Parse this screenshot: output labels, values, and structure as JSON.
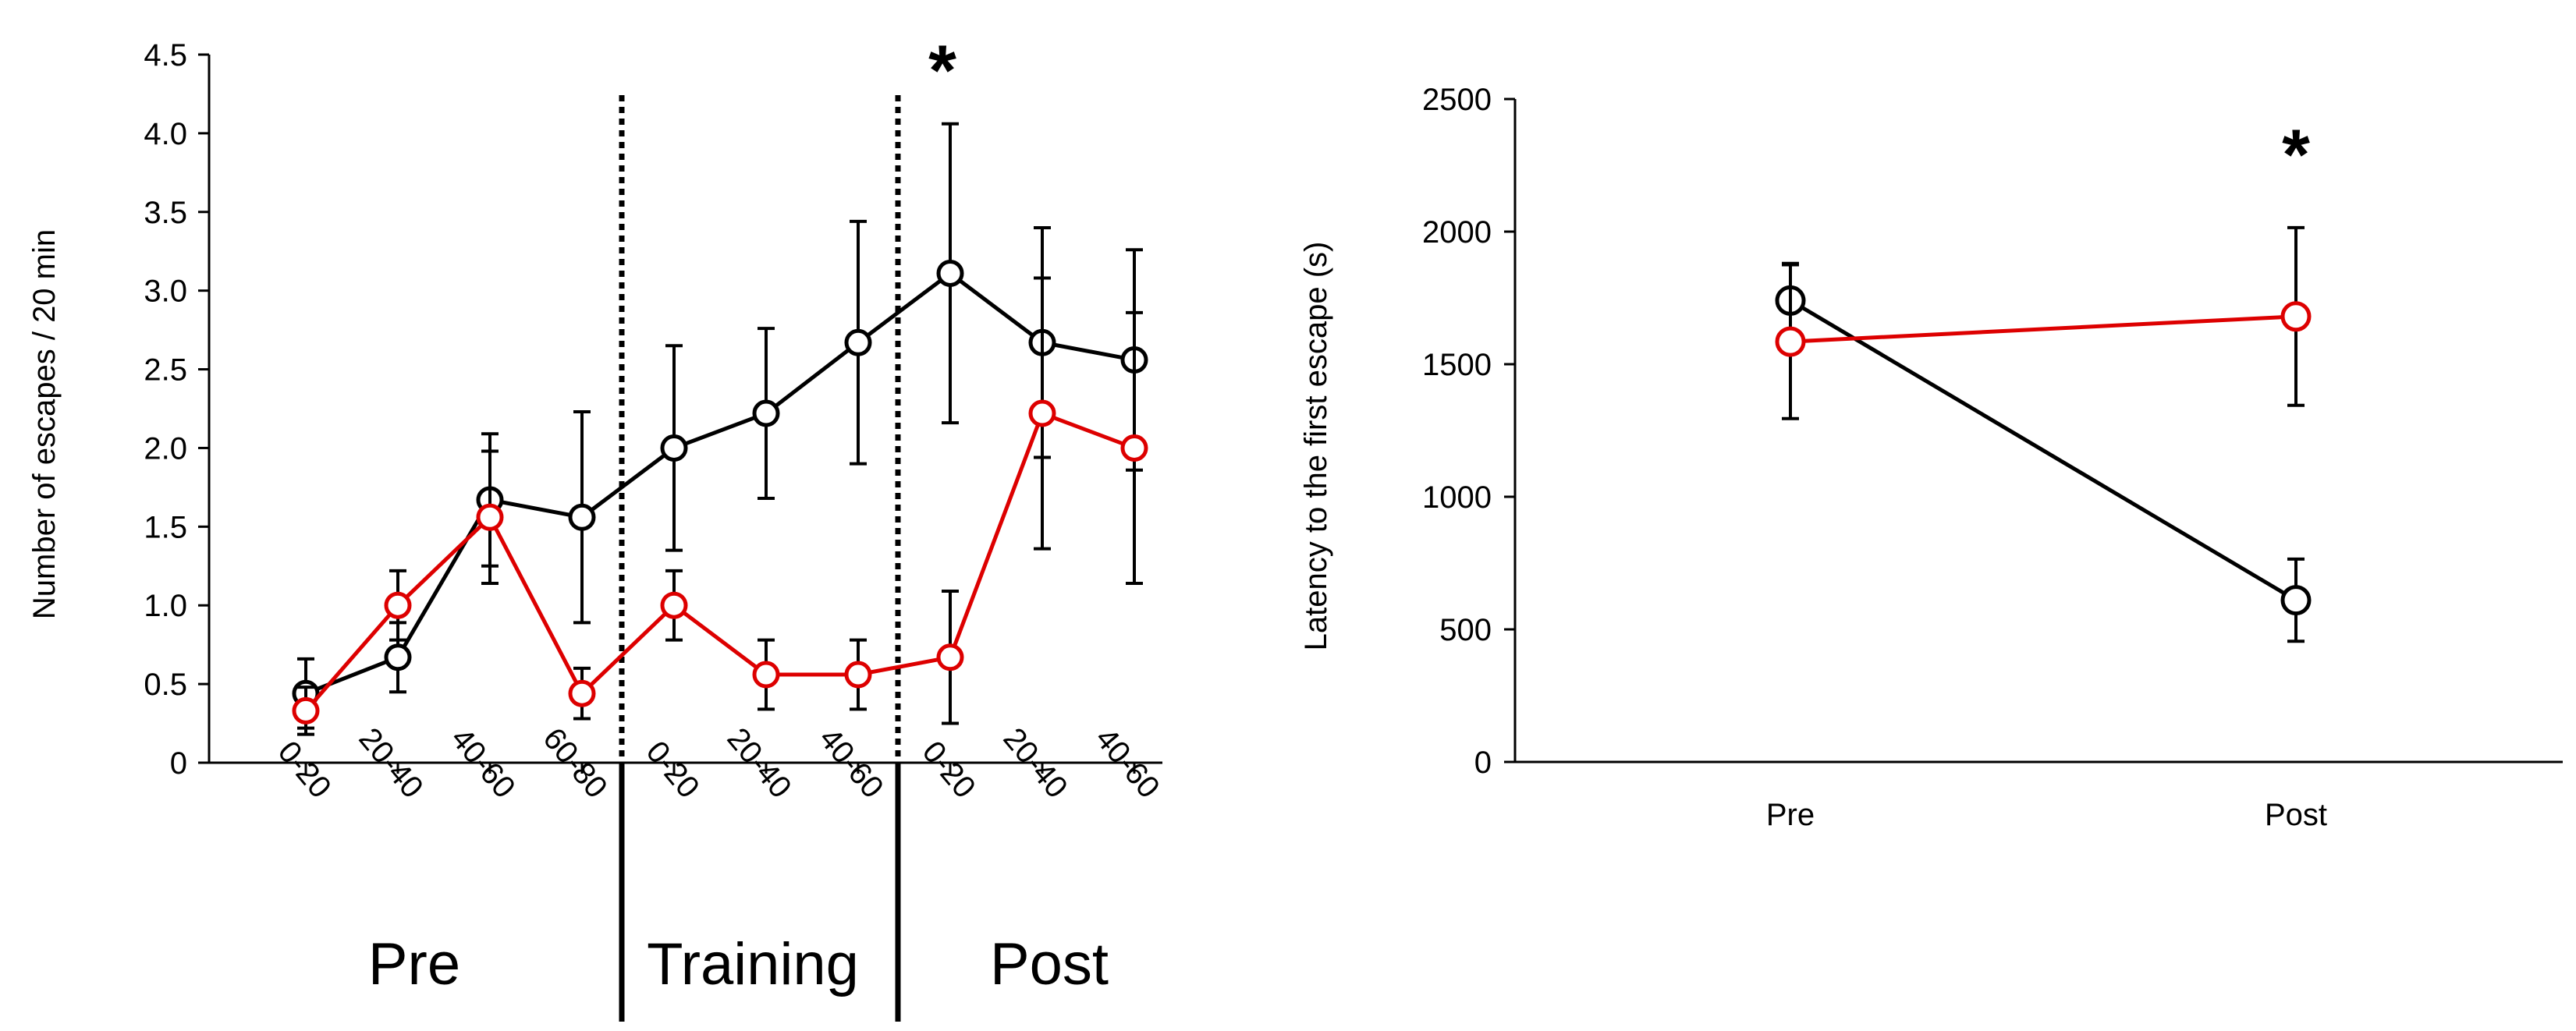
{
  "colors": {
    "control": "#000000",
    "treatment": "#dd0000"
  },
  "chart_data": [
    {
      "type": "line",
      "ylabel": "Number of escapes / 20 min",
      "xlabel": "",
      "ylim": [
        0,
        4.5
      ],
      "yticks": [
        "0",
        "0.5",
        "1.0",
        "1.5",
        "2.0",
        "2.5",
        "3.0",
        "3.5",
        "4.0",
        "4.5"
      ],
      "categories": [
        "0-20",
        "20-40",
        "40-60",
        "60-80",
        "0-20",
        "20-40",
        "40-60",
        "0-20",
        "20-40",
        "40-60"
      ],
      "phases": [
        "Pre",
        "Training",
        "Post"
      ],
      "significance": "*",
      "series": [
        {
          "name": "black",
          "color": "#000000",
          "values": [
            0.44,
            0.67,
            1.67,
            1.56,
            2.0,
            2.22,
            2.67,
            3.11,
            2.67,
            2.56
          ],
          "errors": [
            0.22,
            0.22,
            0.42,
            0.67,
            0.65,
            0.54,
            0.77,
            0.95,
            0.73,
            0.7
          ]
        },
        {
          "name": "red",
          "color": "#dd0000",
          "values": [
            0.33,
            1.0,
            1.56,
            0.44,
            1.0,
            0.56,
            0.56,
            0.67,
            2.22,
            2.0
          ],
          "errors": [
            0.15,
            0.22,
            0.42,
            0.16,
            0.22,
            0.22,
            0.22,
            0.42,
            0.86,
            0.86
          ]
        }
      ]
    },
    {
      "type": "line",
      "ylabel": "Latency to the first escape (s)",
      "xlabel": "",
      "ylim": [
        0,
        2500
      ],
      "yticks": [
        "0",
        "500",
        "1000",
        "1500",
        "2000",
        "2500"
      ],
      "categories": [
        "Pre",
        "Post"
      ],
      "significance": "*",
      "series": [
        {
          "name": "black",
          "color": "#000000",
          "values": [
            1740,
            610
          ],
          "errors": [
            140,
            155
          ]
        },
        {
          "name": "red",
          "color": "#dd0000",
          "values": [
            1585,
            1680
          ],
          "errors": [
            290,
            335
          ]
        }
      ]
    }
  ]
}
